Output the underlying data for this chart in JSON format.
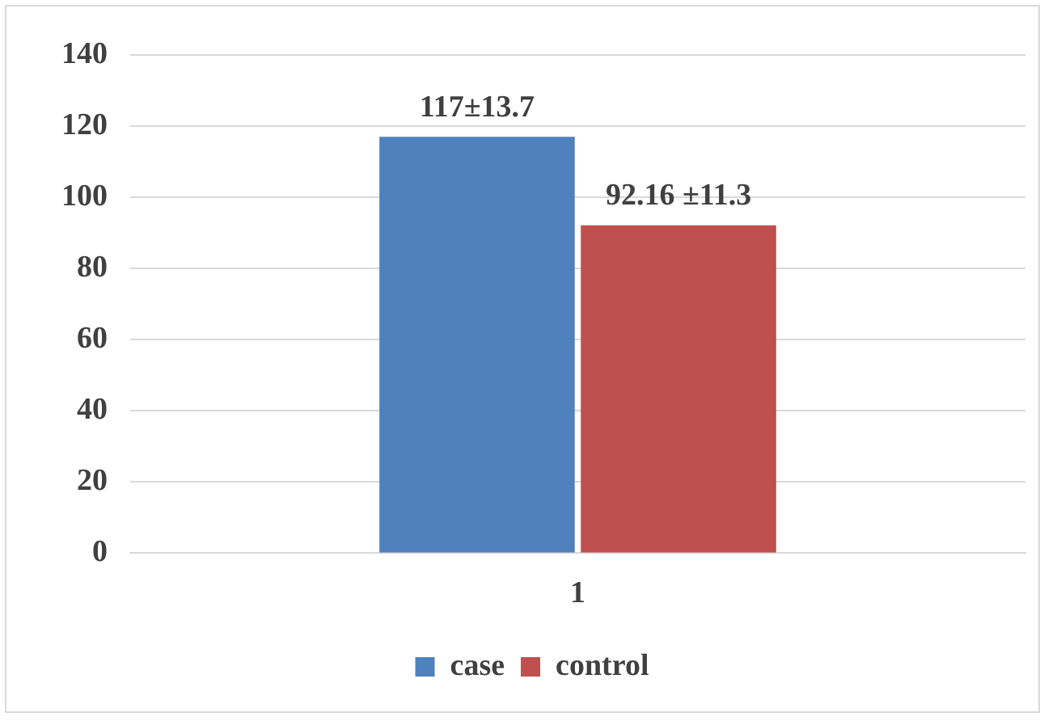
{
  "chart_data": {
    "type": "bar",
    "categories": [
      "1"
    ],
    "series": [
      {
        "name": "case",
        "color": "#4f81bd",
        "values": [
          117
        ],
        "value_labels": [
          "117±13.7"
        ]
      },
      {
        "name": "control",
        "color": "#c0504d",
        "values": [
          92.16
        ],
        "value_labels": [
          "92.16 ±11.3"
        ]
      }
    ],
    "ylim": [
      0,
      140
    ],
    "yticks": [
      0,
      20,
      40,
      60,
      80,
      100,
      120,
      140
    ],
    "grid": "y",
    "legend": "bottom"
  }
}
